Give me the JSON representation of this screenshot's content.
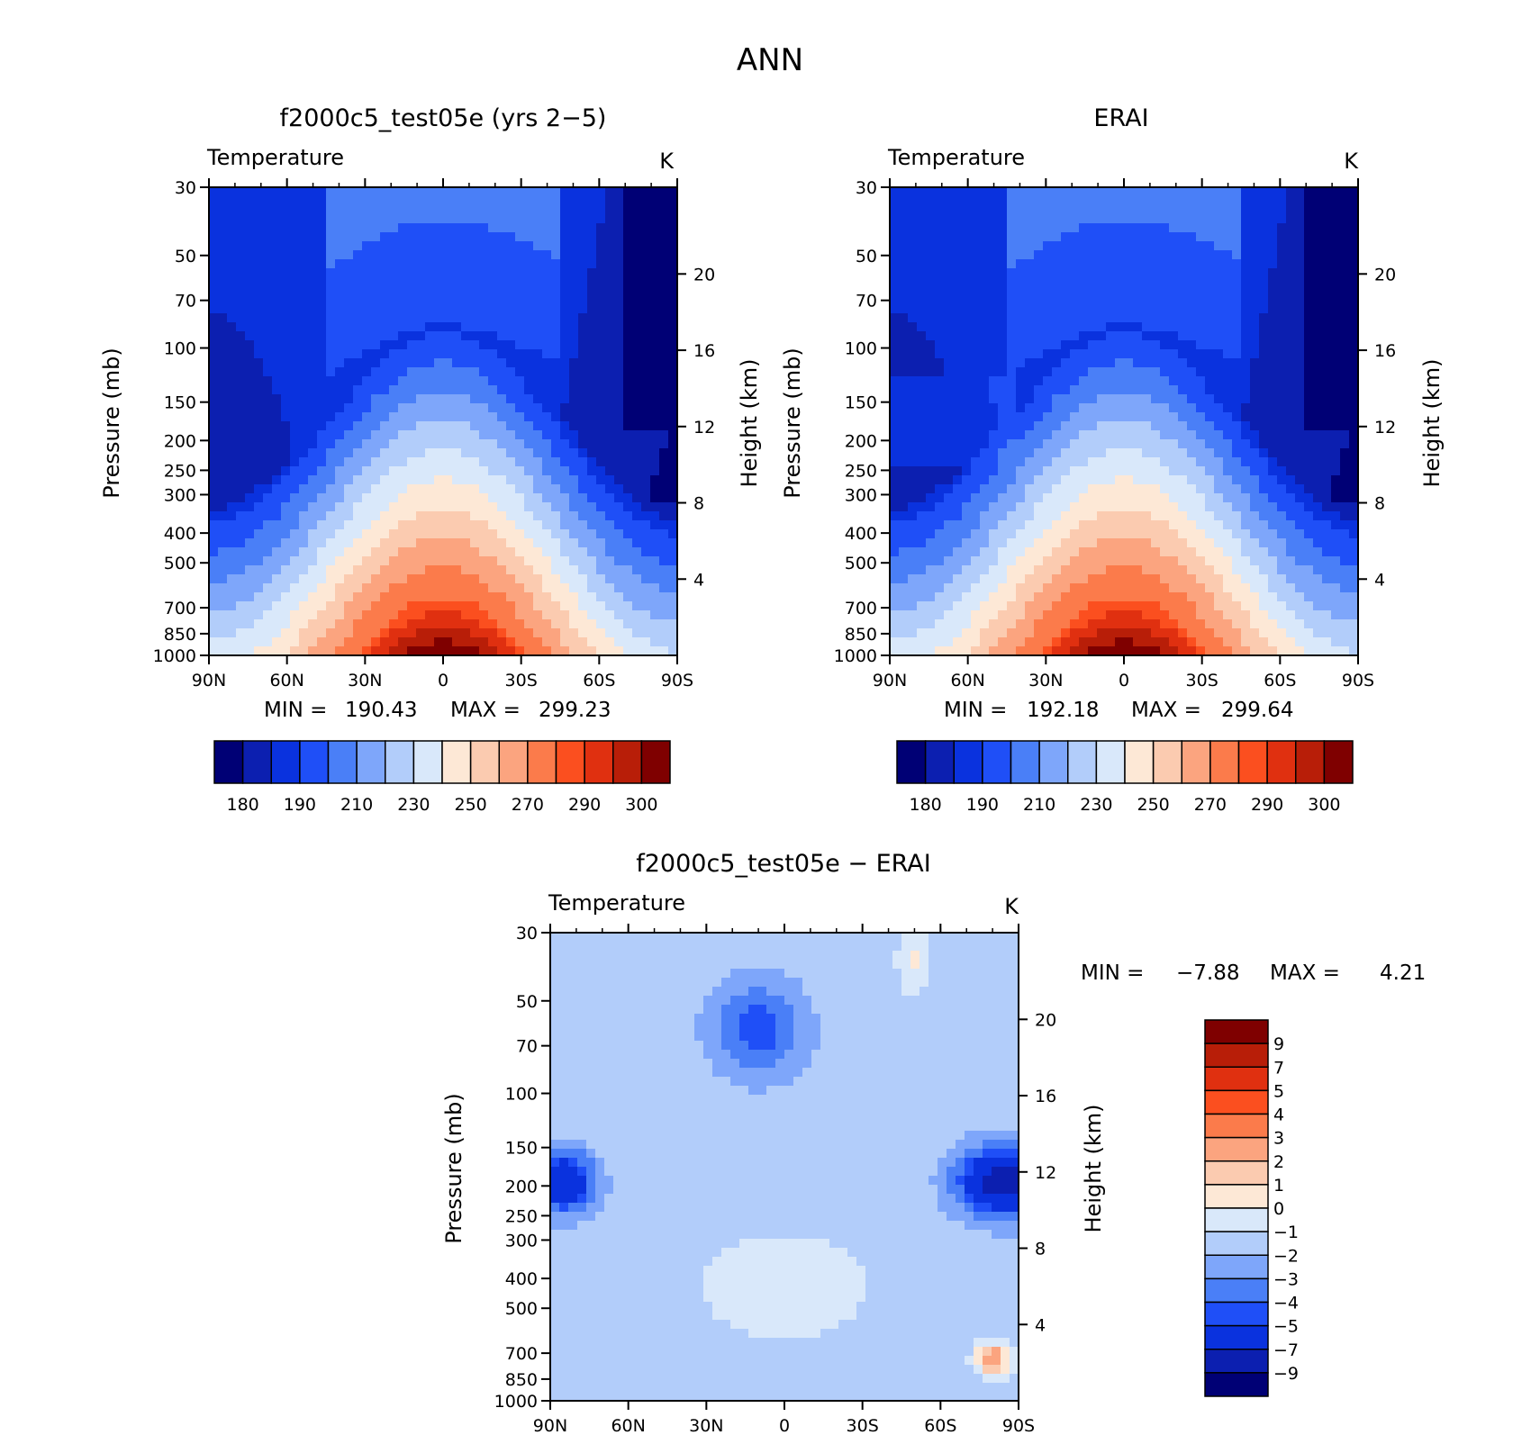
{
  "figure": {
    "title": "ANN"
  },
  "palette": {
    "temperature": [
      "#000075",
      "#0c1fb0",
      "#0a32de",
      "#1f4ff7",
      "#4a7ff7",
      "#7ea6fa",
      "#b2cdfa",
      "#d9e8fa",
      "#fde8d6",
      "#fbcbb0",
      "#fba47f",
      "#fb7b4b",
      "#fb4f1f",
      "#e03010",
      "#b81e08",
      "#7f0000"
    ],
    "difference": [
      "#000075",
      "#0c1fb0",
      "#0a32de",
      "#1f4ff7",
      "#4a7ff7",
      "#7ea6fa",
      "#b2cdfa",
      "#d9e8fa",
      "#fde8d6",
      "#fbcbb0",
      "#fba47f",
      "#fb7b4b",
      "#fb4f1f",
      "#e03010",
      "#b81e08",
      "#7f0000"
    ]
  },
  "chart_data": [
    {
      "type": "heatmap",
      "title": "f2000c5_test05e (yrs 2−5)",
      "subtitle_left": "Temperature",
      "units": "K",
      "ylabel": "Pressure (mb)",
      "ylabel_right": "Height (km)",
      "x_ticks": [
        "90N",
        "60N",
        "30N",
        "0",
        "30S",
        "60S",
        "90S"
      ],
      "y_ticks": [
        "30",
        "50",
        "70",
        "100",
        "150",
        "200",
        "250",
        "300",
        "400",
        "500",
        "700",
        "850",
        "1000"
      ],
      "y_ticks_right": [
        "20",
        "16",
        "12",
        "8",
        "4"
      ],
      "ylim": [
        1000,
        30
      ],
      "yscale": "log",
      "stats": {
        "min_label": "MIN =",
        "min": "190.43",
        "max_label": "MAX =",
        "max": "299.23"
      },
      "colorbar_labels": [
        "180",
        "190",
        "210",
        "230",
        "250",
        "270",
        "290",
        "300"
      ],
      "field_range": {
        "min": 190.43,
        "max": 299.23
      }
    },
    {
      "type": "heatmap",
      "title": "ERAI",
      "subtitle_left": "Temperature",
      "units": "K",
      "ylabel": "Pressure (mb)",
      "ylabel_right": "Height (km)",
      "x_ticks": [
        "90N",
        "60N",
        "30N",
        "0",
        "30S",
        "60S",
        "90S"
      ],
      "y_ticks": [
        "30",
        "50",
        "70",
        "100",
        "150",
        "200",
        "250",
        "300",
        "400",
        "500",
        "700",
        "850",
        "1000"
      ],
      "y_ticks_right": [
        "20",
        "16",
        "12",
        "8",
        "4"
      ],
      "ylim": [
        1000,
        30
      ],
      "yscale": "log",
      "stats": {
        "min_label": "MIN =",
        "min": "192.18",
        "max_label": "MAX =",
        "max": "299.64"
      },
      "colorbar_labels": [
        "180",
        "190",
        "210",
        "230",
        "250",
        "270",
        "290",
        "300"
      ],
      "field_range": {
        "min": 192.18,
        "max": 299.64
      }
    },
    {
      "type": "heatmap",
      "title": "f2000c5_test05e − ERAI",
      "subtitle_left": "Temperature",
      "units": "K",
      "ylabel": "Pressure (mb)",
      "ylabel_right": "Height (km)",
      "x_ticks": [
        "90N",
        "60N",
        "30N",
        "0",
        "30S",
        "60S",
        "90S"
      ],
      "y_ticks": [
        "30",
        "50",
        "70",
        "100",
        "150",
        "200",
        "250",
        "300",
        "400",
        "500",
        "700",
        "850",
        "1000"
      ],
      "y_ticks_right": [
        "20",
        "16",
        "12",
        "8",
        "4"
      ],
      "ylim": [
        1000,
        30
      ],
      "yscale": "log",
      "stats": {
        "min_label": "MIN =",
        "min": "−7.88",
        "max_label": "MAX =",
        "max": "4.21"
      },
      "colorbar_labels": [
        "9",
        "7",
        "5",
        "4",
        "3",
        "2",
        "1",
        "0",
        "−1",
        "−2",
        "−3",
        "−4",
        "−5",
        "−7",
        "−9"
      ],
      "field_range": {
        "min": -7.88,
        "max": 4.21
      }
    }
  ]
}
